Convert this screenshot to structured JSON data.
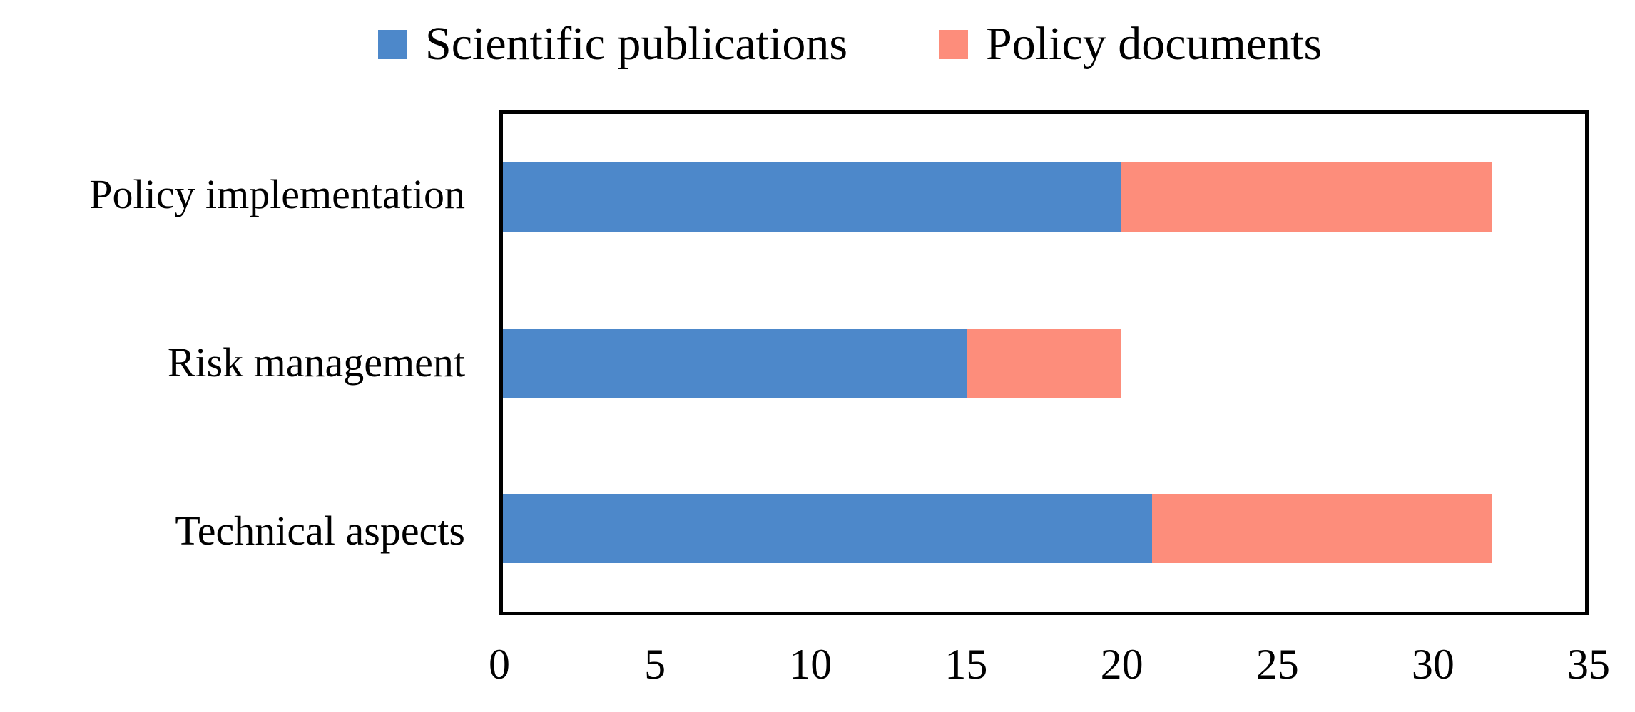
{
  "chart_data": {
    "type": "bar",
    "orientation": "horizontal",
    "stacked": true,
    "title": "",
    "xlabel": "",
    "ylabel": "",
    "categories": [
      "Policy implementation",
      "Risk management",
      "Technical aspects"
    ],
    "series": [
      {
        "name": "Scientific publications",
        "color": "#4D88CA",
        "values": [
          20,
          15,
          21
        ]
      },
      {
        "name": "Policy documents",
        "color": "#FD8D7B",
        "values": [
          12,
          5,
          11
        ]
      }
    ],
    "stack_totals": [
      32,
      20,
      32
    ],
    "xlim": [
      0,
      35
    ],
    "x_ticks": [
      0,
      5,
      10,
      15,
      20,
      25,
      30,
      35
    ],
    "legend_position": "top",
    "grid": false,
    "frame_color": "#000000",
    "text_color": "#000000",
    "background_color": "#FFFFFF"
  }
}
